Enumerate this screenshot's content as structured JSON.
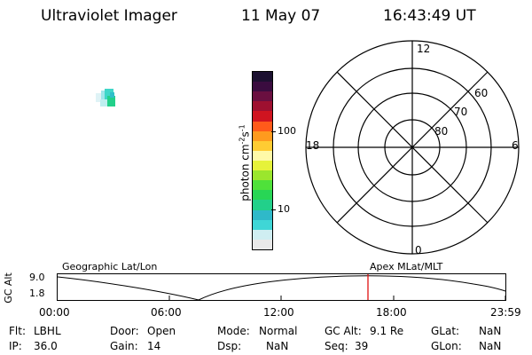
{
  "header": {
    "instrument": "Ultraviolet Imager",
    "date": "11 May 07",
    "time": "16:43:49 UT"
  },
  "colorbar": {
    "unit_label": "photon cm",
    "unit_exp1": "-2",
    "unit_mid": "s",
    "unit_exp2": "-1",
    "tick_high": "100",
    "tick_low": "10",
    "colors": [
      "#e9e9e9",
      "#cfeef2",
      "#3fd6d6",
      "#2fb9c9",
      "#22d08a",
      "#28d655",
      "#4fe13a",
      "#9be62d",
      "#e6f23a",
      "#fff9a8",
      "#ffcc33",
      "#ff9a1e",
      "#ff5a1a",
      "#d01420",
      "#9e1030",
      "#6a0f40",
      "#3a0c3f",
      "#1c1030"
    ]
  },
  "polar_plot": {
    "label_top": "12",
    "label_bottom": "0",
    "label_left": "18",
    "label_right": "6",
    "ring_60": "60",
    "ring_70": "70",
    "ring_80": "80"
  },
  "timeline": {
    "axis_label": "GC Alt",
    "y_top": "9.0",
    "y_bottom": "1.8",
    "left_caption": "Geographic Lat/Lon",
    "right_caption": "Apex MLat/MLT",
    "ticks": [
      "00:00",
      "06:00",
      "12:00",
      "18:00",
      "23:59"
    ],
    "current_marker_color": "#e01010"
  },
  "status": {
    "flt_label": "Flt:",
    "flt_value": "LBHL",
    "ip_label": "IP:",
    "ip_value": "36.0",
    "door_label": "Door:",
    "door_value": "Open",
    "gain_label": "Gain:",
    "gain_value": "14",
    "mode_label": "Mode:",
    "mode_value": "Normal",
    "dsp_label": "Dsp:",
    "dsp_value": "NaN",
    "gcalt_label": "GC Alt:",
    "gcalt_value": "9.1 Re",
    "seq_label": "Seq:",
    "seq_value": "39",
    "glat_label": "GLat:",
    "glat_value": "NaN",
    "glon_label": "GLon:",
    "glon_value": "NaN"
  }
}
